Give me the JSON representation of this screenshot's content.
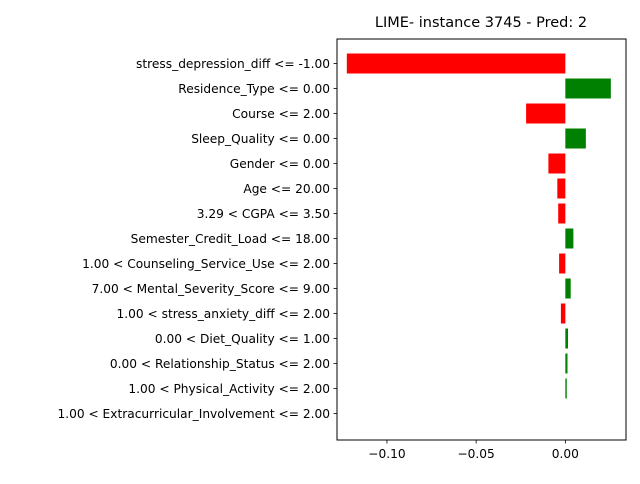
{
  "chart_data": {
    "type": "bar",
    "orientation": "horizontal",
    "title": "LIME- instance 3745 - Pred: 2",
    "xlabel": "",
    "ylabel": "",
    "xlim": [
      -0.128,
      0.034
    ],
    "xticks": [
      -0.1,
      -0.05,
      0.0
    ],
    "xtick_labels": [
      "−0.10",
      "−0.05",
      "0.00"
    ],
    "grid": false,
    "legend": "none",
    "colors": {
      "positive": "#008000",
      "negative": "#ff0000"
    },
    "categories": [
      "stress_depression_diff <= -1.00",
      "Residence_Type <= 0.00",
      "Course <= 2.00",
      "Sleep_Quality <= 0.00",
      "Gender <= 0.00",
      "Age <= 20.00",
      "3.29 < CGPA <= 3.50",
      "Semester_Credit_Load <= 18.00",
      "1.00 < Counseling_Service_Use <= 2.00",
      "7.00 < Mental_Severity_Score <= 9.00",
      "1.00 < stress_anxiety_diff <= 2.00",
      "0.00 < Diet_Quality <= 1.00",
      "0.00 < Relationship_Status <= 2.00",
      "1.00 < Physical_Activity <= 2.00",
      "1.00 < Extracurricular_Involvement <= 2.00"
    ],
    "values": [
      -0.1225,
      0.0255,
      -0.022,
      0.0115,
      -0.0095,
      -0.0045,
      -0.004,
      0.0045,
      -0.0035,
      0.003,
      -0.0025,
      0.0015,
      0.0012,
      0.0008,
      0.0
    ]
  }
}
